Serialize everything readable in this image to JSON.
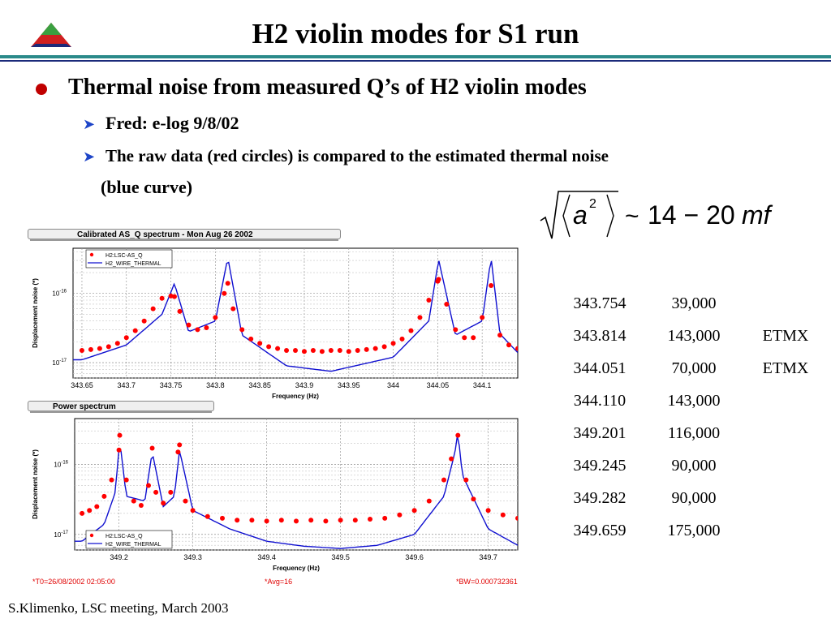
{
  "slide": {
    "title": "H2 violin modes for S1 run",
    "bullet": "Thermal noise from measured Q’s of H2 violin modes",
    "sub_bullets": [
      "Fred: e-log 9/8/02",
      "The raw data (red circles) is compared to the estimated thermal noise"
    ],
    "sub_bullet_cont": "(blue curve)",
    "formula": {
      "a": "a",
      "exp": "2",
      "tilde": "~",
      "range": "14 − 20",
      "unit": "mf"
    },
    "footer": "S.Klimenko, LSC meeting, March 2003",
    "colors": {
      "accent_red": "#c00000",
      "arrow_blue": "#1e45c8",
      "rule_teal": "#2b8a8a",
      "rule_navy": "#1b2a7a"
    }
  },
  "table": {
    "rows": [
      {
        "freq": "343.754",
        "q": "39,000",
        "mirror": ""
      },
      {
        "freq": "343.814",
        "q": "143,000",
        "mirror": "ETMX"
      },
      {
        "freq": "344.051",
        "q": "70,000",
        "mirror": "ETMX"
      },
      {
        "freq": "344.110",
        "q": "143,000",
        "mirror": ""
      },
      {
        "freq": "349.201",
        "q": "116,000",
        "mirror": ""
      },
      {
        "freq": "349.245",
        "q": "90,000",
        "mirror": ""
      },
      {
        "freq": "349.282",
        "q": "90,000",
        "mirror": ""
      },
      {
        "freq": "349.659",
        "q": "175,000",
        "mirror": ""
      }
    ]
  },
  "footnotes": [
    "*T0=26/08/2002 02:05:00",
    "*Avg=16",
    "*BW=0.000732361"
  ],
  "chart_data": [
    {
      "type": "scatter",
      "title": "Calibrated AS_Q spectrum - Mon Aug 26 2002",
      "xlabel": "Frequency (Hz)",
      "ylabel": "Displacement noise (*)",
      "xlim": [
        343.64,
        344.14
      ],
      "ylim": [
        6e-18,
        4.5e-16
      ],
      "yscale": "log",
      "xticks": [
        "343.65",
        "343.7",
        "343.75",
        "343.8",
        "343.85",
        "343.9",
        "343.95",
        "344",
        "344.05",
        "344.1"
      ],
      "yticks": [
        "10^-16",
        "10^-17"
      ],
      "legend_position": "top-left",
      "peaks": [
        343.754,
        343.814,
        344.051,
        344.11
      ],
      "series": [
        {
          "name": "H2:LSC-AS_Q",
          "color": "#ff0000",
          "marker": "circle",
          "x": [
            343.65,
            343.66,
            343.67,
            343.68,
            343.69,
            343.7,
            343.71,
            343.72,
            343.73,
            343.74,
            343.75,
            343.754,
            343.76,
            343.77,
            343.78,
            343.79,
            343.8,
            343.81,
            343.814,
            343.82,
            343.83,
            343.84,
            343.85,
            343.86,
            343.87,
            343.88,
            343.89,
            343.9,
            343.91,
            343.92,
            343.93,
            343.94,
            343.95,
            343.96,
            343.97,
            343.98,
            343.99,
            344.0,
            344.01,
            344.02,
            344.03,
            344.04,
            344.05,
            344.051,
            344.06,
            344.07,
            344.08,
            344.09,
            344.1,
            344.11,
            344.12,
            344.13,
            344.14
          ],
          "y": [
            1.5e-17,
            1.55e-17,
            1.6e-17,
            1.7e-17,
            1.9e-17,
            2.3e-17,
            2.9e-17,
            4e-17,
            6e-17,
            8.5e-17,
            9.2e-17,
            9e-17,
            5.5e-17,
            3.5e-17,
            3e-17,
            3.2e-17,
            4.5e-17,
            1e-16,
            1.4e-16,
            6e-17,
            3e-17,
            2.2e-17,
            1.9e-17,
            1.7e-17,
            1.6e-17,
            1.5e-17,
            1.5e-17,
            1.45e-17,
            1.5e-17,
            1.45e-17,
            1.5e-17,
            1.5e-17,
            1.45e-17,
            1.5e-17,
            1.55e-17,
            1.6e-17,
            1.7e-17,
            1.9e-17,
            2.2e-17,
            2.9e-17,
            4.5e-17,
            8e-17,
            1.5e-16,
            1.6e-16,
            7e-17,
            3e-17,
            2.3e-17,
            2.3e-17,
            4.5e-17,
            1.3e-16,
            2.5e-17,
            1.8e-17,
            1.6e-17
          ]
        },
        {
          "name": "H2_WIRE_THERMAL",
          "color": "#1010d0",
          "marker": "line",
          "x": [
            343.65,
            343.7,
            343.74,
            343.754,
            343.77,
            343.8,
            343.814,
            343.83,
            343.88,
            343.93,
            344.0,
            344.04,
            344.051,
            344.07,
            344.1,
            344.11,
            344.12,
            344.14
          ],
          "y": [
            1.1e-17,
            1.8e-17,
            5e-17,
            1.4e-16,
            2.8e-17,
            4e-17,
            3.3e-16,
            2.5e-17,
            9e-18,
            7.5e-18,
            1.2e-17,
            4e-17,
            3.1e-16,
            2.5e-17,
            4e-17,
            3.3e-16,
            2.6e-17,
            1.4e-17
          ]
        }
      ]
    },
    {
      "type": "scatter",
      "title": "Power spectrum",
      "xlabel": "Frequency (Hz)",
      "ylabel": "Displacement noise (*)",
      "xlim": [
        349.14,
        349.74
      ],
      "ylim": [
        6e-18,
        4.5e-16
      ],
      "yscale": "log",
      "xticks": [
        "349.2",
        "349.3",
        "349.4",
        "349.5",
        "349.6",
        "349.7"
      ],
      "yticks": [
        "10^-16",
        "10^-17"
      ],
      "legend_position": "bottom-left",
      "peaks": [
        349.201,
        349.245,
        349.282,
        349.659
      ],
      "series": [
        {
          "name": "H2:LSC-AS_Q",
          "color": "#ff0000",
          "marker": "circle",
          "x": [
            349.15,
            349.16,
            349.17,
            349.18,
            349.19,
            349.2,
            349.201,
            349.21,
            349.22,
            349.23,
            349.24,
            349.245,
            349.25,
            349.26,
            349.27,
            349.28,
            349.282,
            349.29,
            349.3,
            349.32,
            349.34,
            349.36,
            349.38,
            349.4,
            349.42,
            349.44,
            349.46,
            349.48,
            349.5,
            349.52,
            349.54,
            349.56,
            349.58,
            349.6,
            349.62,
            349.64,
            349.65,
            349.659,
            349.67,
            349.68,
            349.7,
            349.72,
            349.74
          ],
          "y": [
            2e-17,
            2.2e-17,
            2.5e-17,
            3.5e-17,
            6e-17,
            1.6e-16,
            2.6e-16,
            6e-17,
            3e-17,
            2.6e-17,
            5e-17,
            1.7e-16,
            4e-17,
            2.8e-17,
            4e-17,
            1.5e-16,
            1.9e-16,
            3e-17,
            2.2e-17,
            1.8e-17,
            1.7e-17,
            1.6e-17,
            1.6e-17,
            1.55e-17,
            1.6e-17,
            1.55e-17,
            1.6e-17,
            1.55e-17,
            1.6e-17,
            1.6e-17,
            1.65e-17,
            1.7e-17,
            1.9e-17,
            2.2e-17,
            3e-17,
            6e-17,
            1.2e-16,
            2.6e-16,
            6e-17,
            3.2e-17,
            2.2e-17,
            1.9e-17,
            1.7e-17
          ]
        },
        {
          "name": "H2_WIRE_THERMAL",
          "color": "#1010d0",
          "marker": "line",
          "x": [
            349.15,
            349.18,
            349.195,
            349.201,
            349.21,
            349.235,
            349.245,
            349.26,
            349.275,
            349.282,
            349.3,
            349.35,
            349.4,
            349.45,
            349.5,
            349.55,
            349.6,
            349.64,
            349.655,
            349.659,
            349.665,
            349.7,
            349.74
          ],
          "y": [
            8e-18,
            1.4e-17,
            4e-17,
            2.2e-16,
            3.5e-17,
            3e-17,
            1.5e-16,
            2.5e-17,
            3.5e-17,
            1.6e-16,
            2.2e-17,
            1.2e-17,
            8e-18,
            6.8e-18,
            6.3e-18,
            7e-18,
            1e-17,
            3.5e-17,
            1.5e-16,
            2.9e-16,
            7e-17,
            1.2e-17,
            7e-18
          ]
        }
      ]
    }
  ]
}
